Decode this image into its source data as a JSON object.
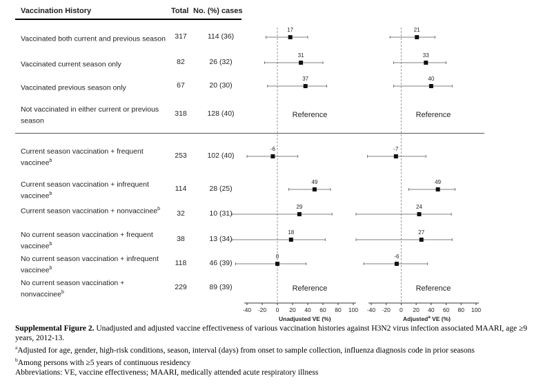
{
  "table": {
    "headers": {
      "history": "Vaccination History",
      "total": "Total",
      "cases": "No. (%) cases"
    },
    "rows": [
      {
        "label": "Vaccinated both current and previous season",
        "sup": "",
        "total": "317",
        "cases": "114 (36)"
      },
      {
        "label": "Vaccinated current season only",
        "sup": "",
        "total": "82",
        "cases": "26 (32)"
      },
      {
        "label": "Vaccinated previous season only",
        "sup": "",
        "total": "67",
        "cases": "20 (30)"
      },
      {
        "label": "Not vaccinated in either current or previous season",
        "sup": "",
        "total": "318",
        "cases": "128 (40)"
      },
      {
        "label": "Current season vaccination + frequent vaccinee",
        "sup": "b",
        "total": "253",
        "cases": "102 (40)"
      },
      {
        "label": "Current season vaccination + infrequent vaccinee",
        "sup": "b",
        "total": "114",
        "cases": "28 (25)"
      },
      {
        "label": "Current season vaccination + nonvaccinee",
        "sup": "b",
        "total": "32",
        "cases": "10 (31)"
      },
      {
        "label": "No current season vaccination + frequent vaccinee",
        "sup": "b",
        "total": "38",
        "cases": "13 (34)"
      },
      {
        "label": "No current season vaccination + infrequent vaccinee",
        "sup": "b",
        "total": "118",
        "cases": "46 (39)"
      },
      {
        "label": "No current season vaccination + nonvaccinee",
        "sup": "b",
        "total": "229",
        "cases": "89 (39)"
      }
    ]
  },
  "chart_data": [
    {
      "type": "scatter",
      "title": "",
      "xlabel": "Unadjusted VE (%)",
      "xlim": [
        -40,
        100
      ],
      "xticks": [
        -40,
        -20,
        0,
        20,
        40,
        60,
        80,
        100
      ],
      "reference_line": 0,
      "reference_label": "Reference",
      "points": [
        {
          "row": 0,
          "ve": 17,
          "lo": -15,
          "hi": 40
        },
        {
          "row": 1,
          "ve": 31,
          "lo": -17,
          "hi": 60
        },
        {
          "row": 2,
          "ve": 37,
          "lo": -13,
          "hi": 65
        },
        {
          "row": 3,
          "reference": true
        },
        {
          "row": 4,
          "ve": -6,
          "lo": -40,
          "hi": 27
        },
        {
          "row": 5,
          "ve": 49,
          "lo": 15,
          "hi": 70
        },
        {
          "row": 6,
          "ve": 29,
          "lo": -80,
          "hi": 72
        },
        {
          "row": 7,
          "ve": 18,
          "lo": -80,
          "hi": 63
        },
        {
          "row": 8,
          "ve": 0,
          "lo": -55,
          "hi": 38
        },
        {
          "row": 9,
          "reference": true
        }
      ]
    },
    {
      "type": "scatter",
      "title": "",
      "xlabel": "Adjusted",
      "xlabel_sup": "a",
      "xlabel_suffix": " VE (%)",
      "xlim": [
        -40,
        100
      ],
      "xticks": [
        -40,
        -20,
        0,
        20,
        40,
        60,
        80,
        100
      ],
      "reference_line": 0,
      "reference_label": "Reference",
      "points": [
        {
          "row": 0,
          "ve": 21,
          "lo": -15,
          "hi": 45
        },
        {
          "row": 1,
          "ve": 33,
          "lo": -10,
          "hi": 60
        },
        {
          "row": 2,
          "ve": 40,
          "lo": -10,
          "hi": 68
        },
        {
          "row": 3,
          "reference": true
        },
        {
          "row": 4,
          "ve": -7,
          "lo": -45,
          "hi": 33
        },
        {
          "row": 5,
          "ve": 49,
          "lo": 10,
          "hi": 72
        },
        {
          "row": 6,
          "ve": 24,
          "lo": -80,
          "hi": 67
        },
        {
          "row": 7,
          "ve": 27,
          "lo": -80,
          "hi": 68
        },
        {
          "row": 8,
          "ve": -6,
          "lo": -50,
          "hi": 35
        },
        {
          "row": 9,
          "reference": true
        }
      ]
    }
  ],
  "caption": {
    "lead": "Supplemental Figure 2.",
    "text": " Unadjusted and adjusted vaccine effectiveness of various vaccination histories against H3N2 virus infection associated MAARI, age ≥9 years, 2012-13.",
    "note_a_sup": "a",
    "note_a": "Adjusted for age, gender, high-risk conditions, season, interval (days) from onset to sample collection, influenza diagnosis code in prior seasons",
    "note_b_sup": "b",
    "note_b": "Among persons with ≥5 years of continuous residency",
    "abbrev": "Abbreviations: VE, vaccine effectiveness; MAARI, medically attended acute respiratory illness"
  },
  "colors": {
    "marker": "#111111",
    "ci": "#555555",
    "ref_line": "#999999",
    "axis": "#333333"
  }
}
